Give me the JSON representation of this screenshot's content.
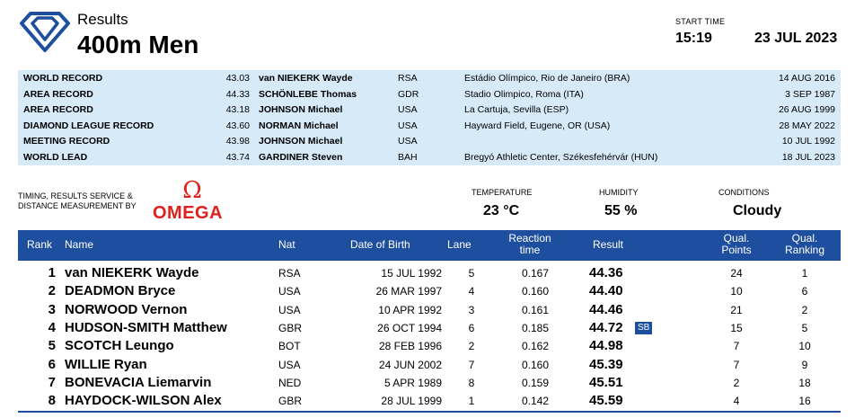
{
  "header": {
    "results_label": "Results",
    "event_title": "400m Men",
    "start_time_label": "START TIME",
    "start_time": "15:19",
    "date": "23 JUL 2023"
  },
  "records": [
    {
      "type": "WORLD RECORD",
      "mark": "43.03",
      "name": "van NIEKERK Wayde",
      "nat": "RSA",
      "venue": "Estádio Olímpico, Rio de Janeiro (BRA)",
      "date": "14 AUG 2016"
    },
    {
      "type": "AREA RECORD",
      "mark": "44.33",
      "name": "SCHÖNLEBE Thomas",
      "nat": "GDR",
      "venue": "Stadio Olimpico, Roma (ITA)",
      "date": "3 SEP 1987"
    },
    {
      "type": "AREA RECORD",
      "mark": "43.18",
      "name": "JOHNSON Michael",
      "nat": "USA",
      "venue": "La Cartuja, Sevilla (ESP)",
      "date": "26 AUG 1999"
    },
    {
      "type": "DIAMOND LEAGUE RECORD",
      "mark": "43.60",
      "name": "NORMAN Michael",
      "nat": "USA",
      "venue": "Hayward Field, Eugene, OR (USA)",
      "date": "28 MAY 2022"
    },
    {
      "type": "MEETING RECORD",
      "mark": "43.98",
      "name": "JOHNSON Michael",
      "nat": "USA",
      "venue": "",
      "date": "10 JUL 1992"
    },
    {
      "type": "WORLD LEAD",
      "mark": "43.74",
      "name": "GARDINER Steven",
      "nat": "BAH",
      "venue": "Bregyó Athletic Center, Székesfehérvár (HUN)",
      "date": "18 JUL 2023"
    }
  ],
  "timing": {
    "line1": "TIMING, RESULTS SERVICE &",
    "line2": "DISTANCE MEASUREMENT BY",
    "brand_symbol": "Ω",
    "brand_name": "OMEGA"
  },
  "conditions": {
    "temperature_label": "TEMPERATURE",
    "temperature": "23 °C",
    "humidity_label": "HUMIDITY",
    "humidity": "55 %",
    "conditions_label": "CONDITIONS",
    "conditions": "Cloudy"
  },
  "table": {
    "headers": {
      "rank": "Rank",
      "name": "Name",
      "nat": "Nat",
      "dob": "Date of Birth",
      "lane": "Lane",
      "reaction_1": "Reaction",
      "reaction_2": "time",
      "result": "Result",
      "points_1": "Qual.",
      "points_2": "Points",
      "qrank_1": "Qual.",
      "qrank_2": "Ranking"
    },
    "rows": [
      {
        "rank": "1",
        "name": "van NIEKERK Wayde",
        "nat": "RSA",
        "dob": "15 JUL 1992",
        "lane": "5",
        "reaction": "0.167",
        "result": "44.36",
        "badge": "",
        "points": "24",
        "qrank": "1"
      },
      {
        "rank": "2",
        "name": "DEADMON Bryce",
        "nat": "USA",
        "dob": "26 MAR 1997",
        "lane": "4",
        "reaction": "0.160",
        "result": "44.40",
        "badge": "",
        "points": "10",
        "qrank": "6"
      },
      {
        "rank": "3",
        "name": "NORWOOD Vernon",
        "nat": "USA",
        "dob": "10 APR 1992",
        "lane": "3",
        "reaction": "0.161",
        "result": "44.46",
        "badge": "",
        "points": "21",
        "qrank": "2"
      },
      {
        "rank": "4",
        "name": "HUDSON-SMITH Matthew",
        "nat": "GBR",
        "dob": "26 OCT 1994",
        "lane": "6",
        "reaction": "0.185",
        "result": "44.72",
        "badge": "SB",
        "points": "15",
        "qrank": "5"
      },
      {
        "rank": "5",
        "name": "SCOTCH Leungo",
        "nat": "BOT",
        "dob": "28 FEB 1996",
        "lane": "2",
        "reaction": "0.162",
        "result": "44.98",
        "badge": "",
        "points": "7",
        "qrank": "10"
      },
      {
        "rank": "6",
        "name": "WILLIE Ryan",
        "nat": "USA",
        "dob": "24 JUN 2002",
        "lane": "7",
        "reaction": "0.160",
        "result": "45.39",
        "badge": "",
        "points": "7",
        "qrank": "9"
      },
      {
        "rank": "7",
        "name": "BONEVACIA Liemarvin",
        "nat": "NED",
        "dob": "5 APR 1989",
        "lane": "8",
        "reaction": "0.159",
        "result": "45.51",
        "badge": "",
        "points": "2",
        "qrank": "18"
      },
      {
        "rank": "8",
        "name": "HAYDOCK-WILSON Alex",
        "nat": "GBR",
        "dob": "28 JUL 1999",
        "lane": "1",
        "reaction": "0.142",
        "result": "45.59",
        "badge": "",
        "points": "4",
        "qrank": "16"
      }
    ]
  },
  "colors": {
    "brand_blue": "#1e4f9e",
    "record_bg": "#d6eaf8",
    "omega_red": "#e0201c"
  },
  "icons": {
    "logo": "diamond-league-logo-icon"
  }
}
